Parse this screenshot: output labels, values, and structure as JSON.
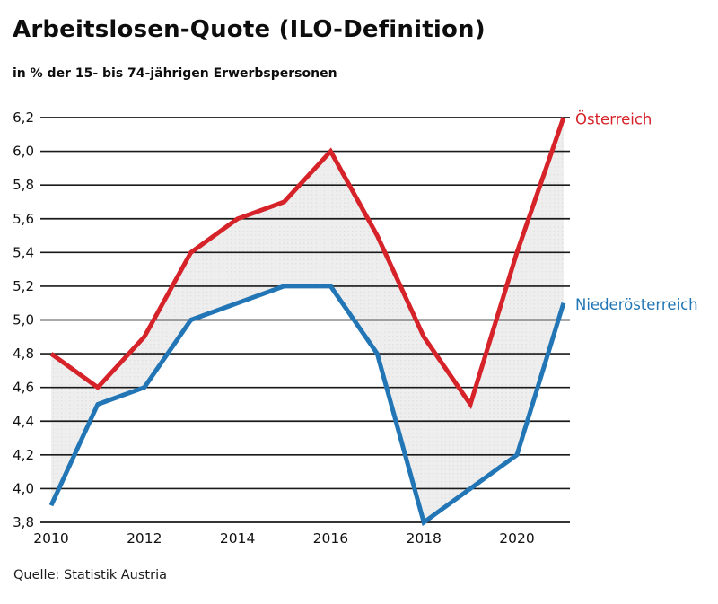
{
  "header": {
    "title": "Arbeitslosen-Quote (ILO-Definition)",
    "subtitle": "in % der 15- bis 74-jährigen Erwerbspersonen"
  },
  "source": "Quelle: Statistik Austria",
  "colors": {
    "austria_red": "#d6232a",
    "lower_austria_blue": "#2276b5",
    "gridline": "#1a1a1a",
    "band_fill": "#eeeeee",
    "band_dots": "#e0e0e0",
    "text": "#111111"
  },
  "chart_data": {
    "type": "line",
    "title": "Arbeitslosen-Quote (ILO-Definition)",
    "subtitle": "in % der 15- bis 74-jährigen Erwerbspersonen",
    "x": [
      2010,
      2011,
      2012,
      2013,
      2014,
      2015,
      2016,
      2017,
      2018,
      2019,
      2020,
      2021
    ],
    "series": [
      {
        "name": "Österreich",
        "color": "#d6232a",
        "values": [
          4.8,
          4.6,
          4.9,
          5.4,
          5.6,
          5.7,
          6.0,
          5.5,
          4.9,
          4.5,
          5.4,
          6.2
        ]
      },
      {
        "name": "Niederösterreich",
        "color": "#2276b5",
        "values": [
          3.9,
          4.5,
          4.6,
          5.0,
          5.1,
          5.2,
          5.2,
          4.8,
          3.8,
          4.0,
          4.2,
          5.1
        ]
      }
    ],
    "ylim": [
      3.8,
      6.2
    ],
    "ytick_values": [
      6.2,
      6.0,
      5.8,
      5.6,
      5.4,
      5.2,
      5.0,
      4.8,
      4.6,
      4.4,
      4.2,
      4.0,
      3.8
    ],
    "ytick_labels": [
      "6,2",
      "6,0",
      "5,8",
      "5,6",
      "5,4",
      "5,2",
      "5,0",
      "4,8",
      "4,6",
      "4,4",
      "4,2",
      "4,0",
      "3,8"
    ],
    "xticks": [
      2010,
      2012,
      2014,
      2016,
      2018,
      2020
    ],
    "grid": "horizontal-only",
    "band_fill_between_series": true,
    "legend_position": "line-end-labels-right",
    "decimal_separator": ",",
    "source": "Quelle: Statistik Austria"
  }
}
